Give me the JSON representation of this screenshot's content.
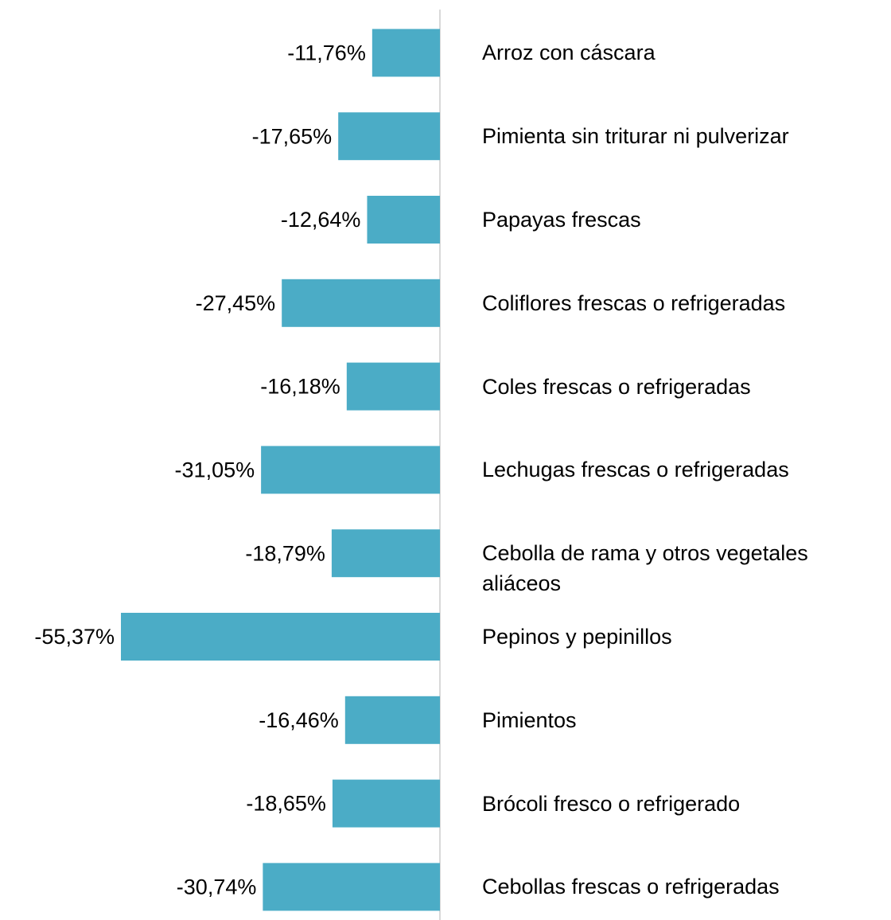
{
  "chart_data": {
    "type": "bar",
    "orientation": "horizontal",
    "color": "#4bacc6",
    "categories": [
      "Arroz con cáscara",
      "Pimienta sin triturar ni pulverizar",
      "Papayas frescas",
      "Coliflores frescas o refrigeradas",
      "Coles frescas o refrigeradas",
      "Lechugas frescas o refrigeradas",
      "Cebolla de rama y otros vegetales aliáceos",
      "Pepinos y pepinillos",
      "Pimientos",
      "Brócoli fresco o refrigerado",
      "Cebollas frescas o refrigeradas"
    ],
    "values": [
      -11.76,
      -17.65,
      -12.64,
      -27.45,
      -16.18,
      -31.05,
      -18.79,
      -55.37,
      -16.46,
      -18.65,
      -30.74
    ],
    "value_labels": [
      "-11,76%",
      "-17,65%",
      "-12,64%",
      "-27,45%",
      "-16,18%",
      "-31,05%",
      "-18,79%",
      "-55,37%",
      "-16,46%",
      "-18,65%",
      "-30,74%"
    ]
  }
}
